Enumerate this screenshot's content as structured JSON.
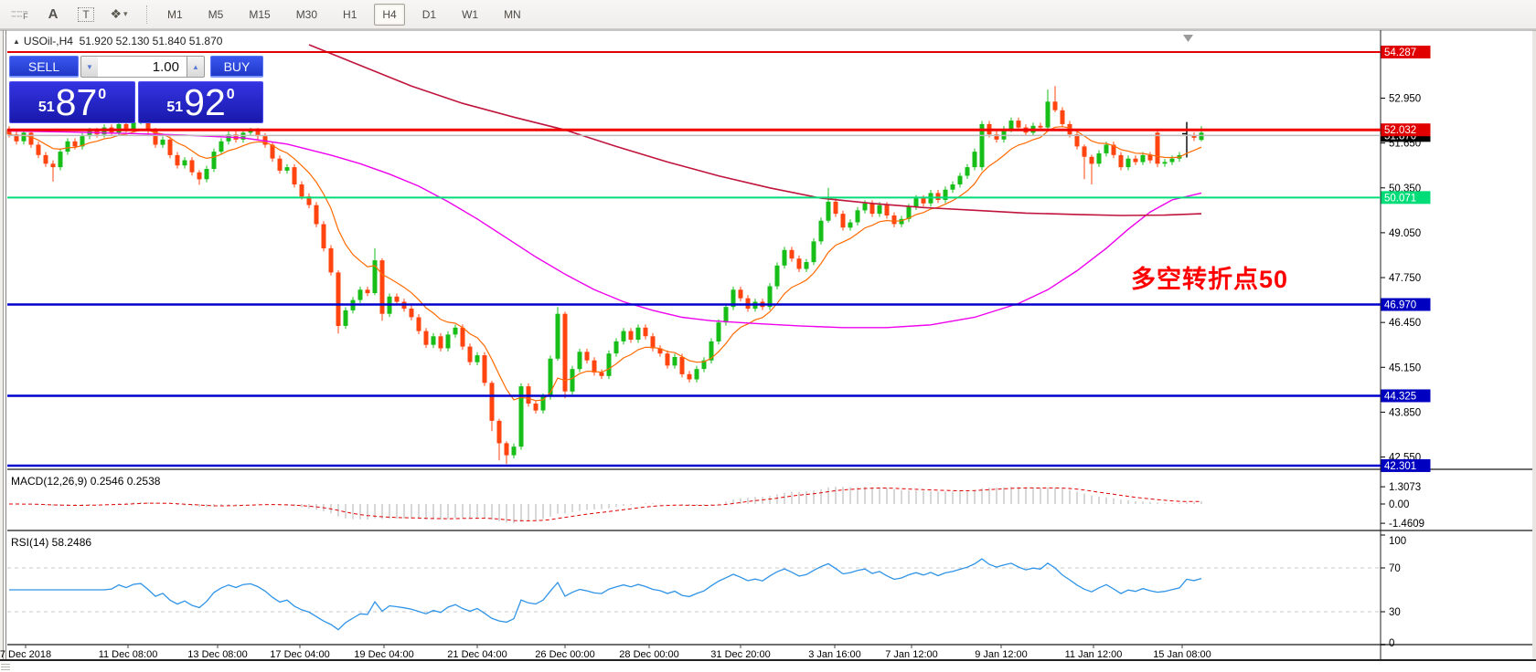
{
  "icons": {
    "collapse": "▲",
    "dropdown": "▾",
    "spin_up": "▲",
    "spin_down": "▼",
    "paint": "❖",
    "marker": "▼"
  },
  "toolbar": {
    "icon_f_label": "F",
    "icon_a_label": "A",
    "icon_t_label": "T",
    "timeframes": [
      "M1",
      "M5",
      "M15",
      "M30",
      "H1",
      "H4",
      "D1",
      "W1",
      "MN"
    ],
    "active_timeframe": "H4"
  },
  "chart": {
    "symbol_tf": "USOil-,H4",
    "ohlc_text": "51.920 52.130 51.840 51.870"
  },
  "trade_panel": {
    "sell_label": "SELL",
    "buy_label": "BUY",
    "volume": "1.00",
    "sell_small": "51",
    "sell_big": "87",
    "sell_sup": "0",
    "buy_small": "51",
    "buy_big": "92",
    "buy_sup": "0"
  },
  "indicators": {
    "macd_label": "MACD(12,26,9) 0.2546 0.2538",
    "rsi_label": "RSI(14) 58.2486"
  },
  "annotation": {
    "text": "多空转折点50",
    "color": "#FF0000"
  },
  "chart_data": {
    "type": "candlestick",
    "symbol": "USOil-",
    "timeframe": "H4",
    "current_bar": {
      "open": 51.92,
      "high": 52.13,
      "low": 51.84,
      "close": 51.87
    },
    "colors": {
      "bull": "#17BE17",
      "bear": "#FF4410",
      "black_bar": "#000000",
      "ma_fast": "#FF6A00",
      "ma_mid": "#EE00EE",
      "ma_slow": "#C0143C",
      "macd_hist": "#B0B0B0",
      "macd_signal": "#E00000",
      "rsi_line": "#2F94E8",
      "level_dash": "#C9C9C9"
    },
    "price_axis_ticks": [
      "52.950",
      "51.650",
      "50.350",
      "49.050",
      "47.750",
      "46.450",
      "45.150",
      "43.850",
      "42.550"
    ],
    "price_lines": [
      {
        "price": 54.287,
        "label": "54.287",
        "color": "#E00000",
        "width": 2,
        "badge_bg": "#E00000"
      },
      {
        "price": 51.87,
        "label": "51.870",
        "color": "#BDBDBD",
        "width": 1.5,
        "badge_bg": "#000000"
      },
      {
        "price": 52.032,
        "label": "52.032",
        "color": "#F20000",
        "width": 3,
        "badge_bg": "#E00000"
      },
      {
        "price": 50.071,
        "label": "50.071",
        "color": "#00DC78",
        "width": 2,
        "badge_bg": "#00DC78"
      },
      {
        "price": 46.97,
        "label": "46.970",
        "color": "#0000CC",
        "width": 2.5,
        "badge_bg": "#0000C0"
      },
      {
        "price": 44.325,
        "label": "44.325",
        "color": "#0000CC",
        "width": 2.5,
        "badge_bg": "#0000C0"
      },
      {
        "price": 42.301,
        "label": "42.301",
        "color": "#0000CC",
        "width": 2.5,
        "badge_bg": "#0000C0"
      }
    ],
    "candles": {
      "first_open": 52.05,
      "closes": [
        51.9,
        51.7,
        51.95,
        51.6,
        51.3,
        51.05,
        50.95,
        51.4,
        51.7,
        51.55,
        51.85,
        52.0,
        51.9,
        52.1,
        51.95,
        52.2,
        52.05,
        52.25,
        52.3,
        52.0,
        51.6,
        51.75,
        51.3,
        51.0,
        51.15,
        50.8,
        50.6,
        50.9,
        51.4,
        51.7,
        51.9,
        51.75,
        51.95,
        52.0,
        51.85,
        51.6,
        51.2,
        50.85,
        50.95,
        50.45,
        50.1,
        49.85,
        49.3,
        48.6,
        47.9,
        46.35,
        46.8,
        47.1,
        47.4,
        47.3,
        48.25,
        46.7,
        47.2,
        47.05,
        46.85,
        46.6,
        46.2,
        45.8,
        46.05,
        45.7,
        46.1,
        46.3,
        45.75,
        45.3,
        45.5,
        44.7,
        43.6,
        42.95,
        42.6,
        42.85,
        44.6,
        44.1,
        43.9,
        44.3,
        45.4,
        46.7,
        44.45,
        45.1,
        45.6,
        45.35,
        45.0,
        44.9,
        45.55,
        45.9,
        46.2,
        45.95,
        46.3,
        46.05,
        45.7,
        45.55,
        45.2,
        45.45,
        44.95,
        44.8,
        45.1,
        45.35,
        45.9,
        46.45,
        46.9,
        47.4,
        47.15,
        46.85,
        47.05,
        46.9,
        47.5,
        48.1,
        48.55,
        48.3,
        48.0,
        48.2,
        48.8,
        49.4,
        49.95,
        49.6,
        49.2,
        49.35,
        49.7,
        49.9,
        49.6,
        49.85,
        49.55,
        49.3,
        49.45,
        49.8,
        50.05,
        49.9,
        50.2,
        50.0,
        50.3,
        50.45,
        50.7,
        50.95,
        51.4,
        52.2,
        51.9,
        51.75,
        52.05,
        52.3,
        52.1,
        51.95,
        52.15,
        52.1,
        52.85,
        52.6,
        52.2,
        51.9,
        51.55,
        51.25,
        51.05,
        51.35,
        51.6,
        51.3,
        50.95,
        51.2,
        51.1,
        51.3,
        51.15,
        51.05,
        51.1,
        51.2,
        51.3,
        51.87,
        51.8,
        51.95
      ],
      "opens_override": {
        "133": 50.95,
        "157": 51.95,
        "161": 51.92,
        "163": 51.74
      },
      "wicks_override": {
        "6": [
          0.1,
          0.42
        ],
        "18": [
          0.12,
          0.06
        ],
        "26": [
          0.06,
          0.16
        ],
        "45": [
          0.06,
          0.22
        ],
        "50": [
          0.35,
          0.06
        ],
        "51": [
          0.06,
          0.2
        ],
        "66": [
          0.06,
          0.3
        ],
        "67": [
          0.06,
          0.5
        ],
        "68": [
          0.06,
          0.25
        ],
        "75": [
          0.2,
          0.06
        ],
        "76": [
          0.06,
          0.2
        ],
        "112": [
          0.4,
          0.06
        ],
        "142": [
          0.35,
          0.06
        ],
        "143": [
          0.45,
          0.06
        ],
        "147": [
          0.06,
          0.65
        ],
        "148": [
          0.06,
          0.6
        ],
        "157": [
          0.05,
          0.1
        ],
        "161": [
          0.34,
          0.64
        ],
        "163": [
          0.19,
          0.04
        ]
      },
      "black_bar": 161
    },
    "ma_fast_period": 10,
    "ma_mid_points": [
      [
        0,
        52.0
      ],
      [
        8,
        51.97
      ],
      [
        16,
        51.93
      ],
      [
        24,
        51.88
      ],
      [
        32,
        51.8
      ],
      [
        38,
        51.62
      ],
      [
        44,
        51.3
      ],
      [
        48,
        51.05
      ],
      [
        52,
        50.75
      ],
      [
        56,
        50.4
      ],
      [
        60,
        49.95
      ],
      [
        64,
        49.45
      ],
      [
        68,
        48.9
      ],
      [
        72,
        48.35
      ],
      [
        76,
        47.85
      ],
      [
        80,
        47.4
      ],
      [
        84,
        47.05
      ],
      [
        88,
        46.8
      ],
      [
        92,
        46.6
      ],
      [
        96,
        46.5
      ],
      [
        102,
        46.42
      ],
      [
        108,
        46.35
      ],
      [
        114,
        46.3
      ],
      [
        120,
        46.3
      ],
      [
        126,
        46.38
      ],
      [
        132,
        46.6
      ],
      [
        138,
        47.0
      ],
      [
        142,
        47.4
      ],
      [
        146,
        47.95
      ],
      [
        150,
        48.6
      ],
      [
        153,
        49.15
      ],
      [
        156,
        49.65
      ],
      [
        159,
        50.0
      ],
      [
        163,
        50.2
      ]
    ],
    "ma_slow_points": [
      [
        41,
        54.5
      ],
      [
        48,
        53.9
      ],
      [
        55,
        53.3
      ],
      [
        62,
        52.8
      ],
      [
        69,
        52.4
      ],
      [
        76,
        52.03
      ],
      [
        83,
        51.55
      ],
      [
        90,
        51.1
      ],
      [
        97,
        50.7
      ],
      [
        104,
        50.35
      ],
      [
        111,
        50.05
      ],
      [
        118,
        49.9
      ],
      [
        125,
        49.78
      ],
      [
        132,
        49.7
      ],
      [
        139,
        49.62
      ],
      [
        146,
        49.58
      ],
      [
        152,
        49.55
      ],
      [
        158,
        49.56
      ],
      [
        163,
        49.6
      ]
    ],
    "macd": {
      "fast": 12,
      "slow": 26,
      "signal": 9,
      "current_hist": 0.2546,
      "current_signal": 0.2538,
      "axis_labels": [
        [
          "1.3073",
          1.3073
        ],
        [
          "0.00",
          0
        ],
        [
          "-1.4609",
          -1.4609
        ]
      ],
      "pos_max": 1.3073,
      "neg_min": -1.4609
    },
    "rsi": {
      "period": 14,
      "current": 58.2486,
      "axis_labels": [
        [
          "100",
          100
        ],
        [
          "70",
          70
        ],
        [
          "30",
          30
        ],
        [
          "0",
          0
        ]
      ],
      "dashed_levels": [
        70,
        30
      ]
    },
    "time_ticks": [
      [
        "7 Dec 2018",
        28
      ],
      [
        "11 Dec 08:00",
        140
      ],
      [
        "13 Dec 08:00",
        238
      ],
      [
        "17 Dec 04:00",
        328
      ],
      [
        "19 Dec 04:00",
        420
      ],
      [
        "21 Dec 04:00",
        522
      ],
      [
        "26 Dec 00:00",
        618
      ],
      [
        "28 Dec 00:00",
        710
      ],
      [
        "31 Dec 20:00",
        810
      ],
      [
        "3 Jan 16:00",
        913
      ],
      [
        "7 Jan 12:00",
        997
      ],
      [
        "9 Jan 12:00",
        1095
      ],
      [
        "11 Jan 12:00",
        1196
      ],
      [
        "15 Jan 08:00",
        1293
      ]
    ]
  }
}
